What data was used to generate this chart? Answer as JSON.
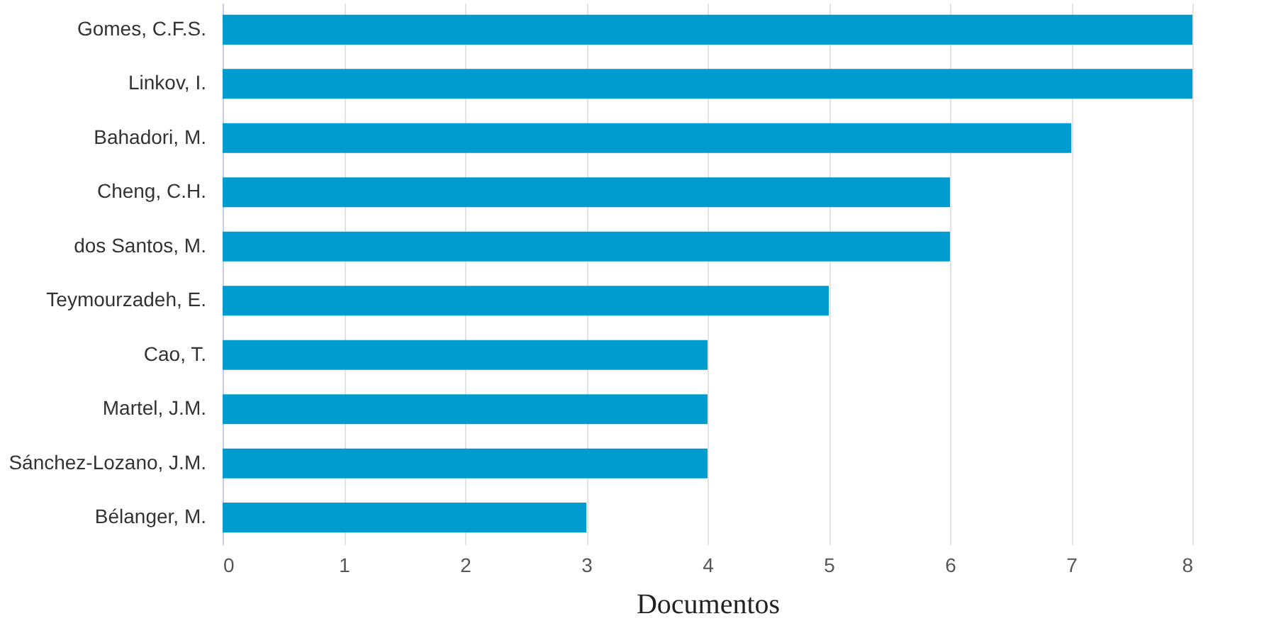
{
  "chart_data": {
    "type": "bar",
    "orientation": "horizontal",
    "xlabel": "Documentos",
    "categories": [
      "Gomes, C.F.S.",
      "Linkov, I.",
      "Bahadori, M.",
      "Cheng, C.H.",
      "dos Santos, M.",
      "Teymourzadeh, E.",
      "Cao, T.",
      "Martel, J.M.",
      "Sánchez-Lozano, J.M.",
      "Bélanger, M."
    ],
    "values": [
      8,
      8,
      7,
      6,
      6,
      5,
      4,
      4,
      4,
      3
    ],
    "color": "#009ccf",
    "xlim": [
      0,
      8
    ],
    "xticks": [
      0,
      1,
      2,
      3,
      4,
      5,
      6,
      7,
      8
    ],
    "grid": "x"
  }
}
